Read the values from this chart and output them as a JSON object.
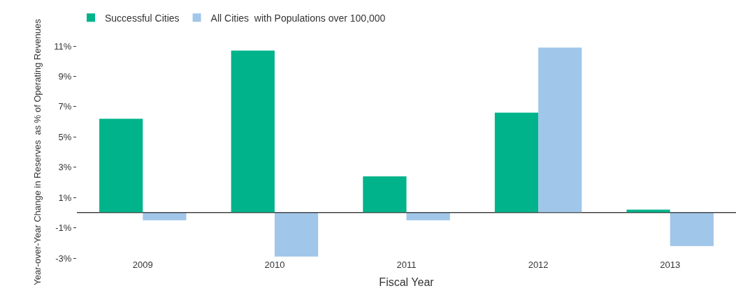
{
  "chart_data": {
    "type": "bar",
    "xlabel": "Fiscal Year",
    "ylabel": "Year-over-Year Change in Reserves  as % of Operating Revenues",
    "categories": [
      "2009",
      "2010",
      "2011",
      "2012",
      "2013"
    ],
    "series": [
      {
        "name": "Successful Cities",
        "color": "#00b38a",
        "values": [
          6.2,
          10.7,
          2.4,
          6.6,
          0.2
        ]
      },
      {
        "name": "All Cities  with Populations over 100,000",
        "color": "#a0c6e9",
        "values": [
          -0.5,
          -2.9,
          -0.5,
          10.9,
          -2.2
        ]
      }
    ],
    "ylim": [
      -3,
      11
    ],
    "yticks": [
      {
        "value": -3,
        "label": "-3%"
      },
      {
        "value": -1,
        "label": "-1%"
      },
      {
        "value": 1,
        "label": "1%"
      },
      {
        "value": 3,
        "label": "3%"
      },
      {
        "value": 5,
        "label": "5%"
      },
      {
        "value": 7,
        "label": "7%"
      },
      {
        "value": 9,
        "label": "9%"
      },
      {
        "value": 11,
        "label": "11%"
      }
    ],
    "legend": "top left"
  }
}
